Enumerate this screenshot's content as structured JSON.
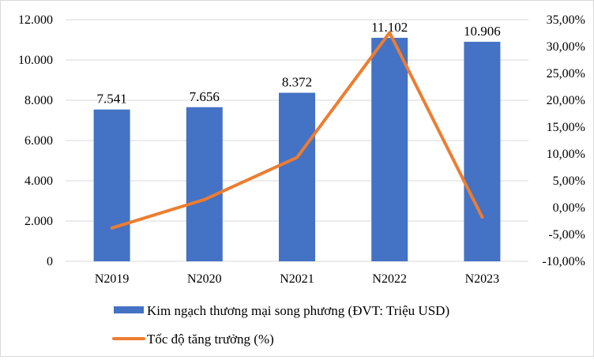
{
  "chart_data": {
    "type": "bar+line",
    "categories": [
      "N2019",
      "N2020",
      "N2021",
      "N2022",
      "N2023"
    ],
    "series": [
      {
        "name": "Kim ngạch thương mại song phương (ĐVT: Triệu USD)",
        "type": "bar",
        "axis": "left",
        "color": "#4472C4",
        "values": [
          7541,
          7656,
          8372,
          11102,
          10906
        ],
        "labels": [
          "7.541",
          "7.656",
          "8.372",
          "11.102",
          "10.906"
        ]
      },
      {
        "name": "Tốc độ tăng trưởng (%)",
        "type": "line",
        "axis": "right",
        "color": "#ED7D31",
        "values": [
          -3.8,
          1.5,
          9.35,
          32.6,
          -1.77
        ]
      }
    ],
    "left_axis": {
      "ylim": [
        0,
        12000
      ],
      "ticks": [
        "0",
        "2.000",
        "4.000",
        "6.000",
        "8.000",
        "10.000",
        "12.000"
      ]
    },
    "right_axis": {
      "ylim": [
        -10,
        35
      ],
      "ticks": [
        "-10,00%",
        "-5,00%",
        "0,00%",
        "5,00%",
        "10,00%",
        "15,00%",
        "20,00%",
        "25,00%",
        "30,00%",
        "35,00%"
      ]
    },
    "grid": true,
    "legend": "bottom"
  }
}
